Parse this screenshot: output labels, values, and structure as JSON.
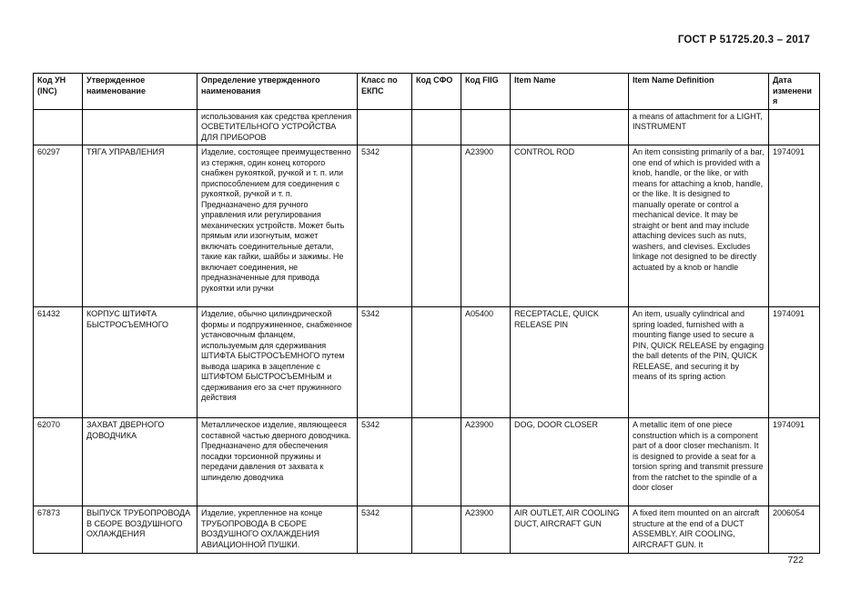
{
  "doc": {
    "header": "ГОСТ Р 51725.20.3 – 2017",
    "page_number": "722"
  },
  "table": {
    "columns": [
      "Код УН (INC)",
      "Утвержденное наименование",
      "Определение утвержденного наименования",
      "Класс по ЕКПС",
      "Код СФО",
      "Код FIIG",
      "Item Name",
      "Item Name Definition",
      "Дата изменения"
    ],
    "rows": [
      {
        "cells": [
          "",
          "",
          "использования как средства крепления ОСВЕТИТЕЛЬНОГО УСТРОЙСТВА ДЛЯ ПРИБОРОВ",
          "",
          "",
          "",
          "",
          "a means of attachment for a LIGHT, INSTRUMENT",
          ""
        ]
      },
      {
        "cells": [
          "60297",
          "ТЯГА УПРАВЛЕНИЯ",
          "Изделие, состоящее преимущественно из стержня, один конец которого снабжен рукояткой, ручкой и т. п. или приспособлением для соединения с рукояткой, ручкой и т. п. Предназначено для ручного управления или регулирования механических устройств. Может быть прямым или изогнутым, может включать соединительные детали, такие как гайки, шайбы и зажимы. Не включает соединения, не предназначенные для привода рукоятки или ручки",
          "5342",
          "",
          "A23900",
          "CONTROL ROD",
          "An item consisting primarily of a bar, one end of which is provided with a knob, handle, or the like, or with means for attaching a knob, handle, or the like. It is designed to manually operate or control a mechanical device. It may be straight or bent and may include attaching devices such as nuts, washers, and clevises. Excludes linkage not designed to be directly actuated by a knob or handle",
          "1974091"
        ]
      },
      {
        "cells": [
          "61432",
          "КОРПУС ШТИФТА БЫСТРОСЪЕМНОГО",
          "Изделие, обычно цилиндрической формы и подпружиненное, снабженное установочным фланцем, используемым для сдерживания ШТИФТА БЫСТРОСЪЕМНОГО путем вывода шарика в зацепление с ШТИФТОМ БЫСТРОСЪЕМНЫМ и сдерживания его за счет пружинного действия",
          "5342",
          "",
          "A05400",
          "RECEPTACLE, QUICK RELEASE PIN",
          "An item, usually cylindrical and spring loaded, furnished with a mounting flange used to secure a PIN, QUICK RELEASE by engaging the ball detents of the PIN, QUICK RELEASE, and securing it by means of its spring action",
          "1974091"
        ]
      },
      {
        "cells": [
          "62070",
          "ЗАХВАТ ДВЕРНОГО ДОВОДЧИКА",
          "Металлическое изделие, являющееся составной частью дверного доводчика. Предназначено для обеспечения посадки торсионной пружины и передачи давления от захвата к шпинделю доводчика",
          "5342",
          "",
          "A23900",
          "DOG, DOOR CLOSER",
          "A metallic item of one piece construction which is a component part of a door closer mechanism. It is designed to provide a seat for a torsion spring and transmit pressure from the ratchet to the spindle of a door closer",
          "1974091"
        ]
      },
      {
        "cells": [
          "67873",
          "ВЫПУСК ТРУБОПРОВОДА В СБОРЕ ВОЗДУШНОГО ОХЛАЖДЕНИЯ",
          "Изделие, укрепленное на конце ТРУБОПРОВОДА В СБОРЕ ВОЗДУШНОГО ОХЛАЖДЕНИЯ АВИАЦИОННОЙ ПУШКИ.",
          "5342",
          "",
          "A23900",
          "AIR OUTLET, AIR COOLING DUCT, AIRCRAFT GUN",
          "A fixed item mounted on an aircraft structure at the end of a DUCT ASSEMBLY, AIR COOLING, AIRCRAFT GUN.  It",
          "2006054"
        ]
      }
    ]
  }
}
